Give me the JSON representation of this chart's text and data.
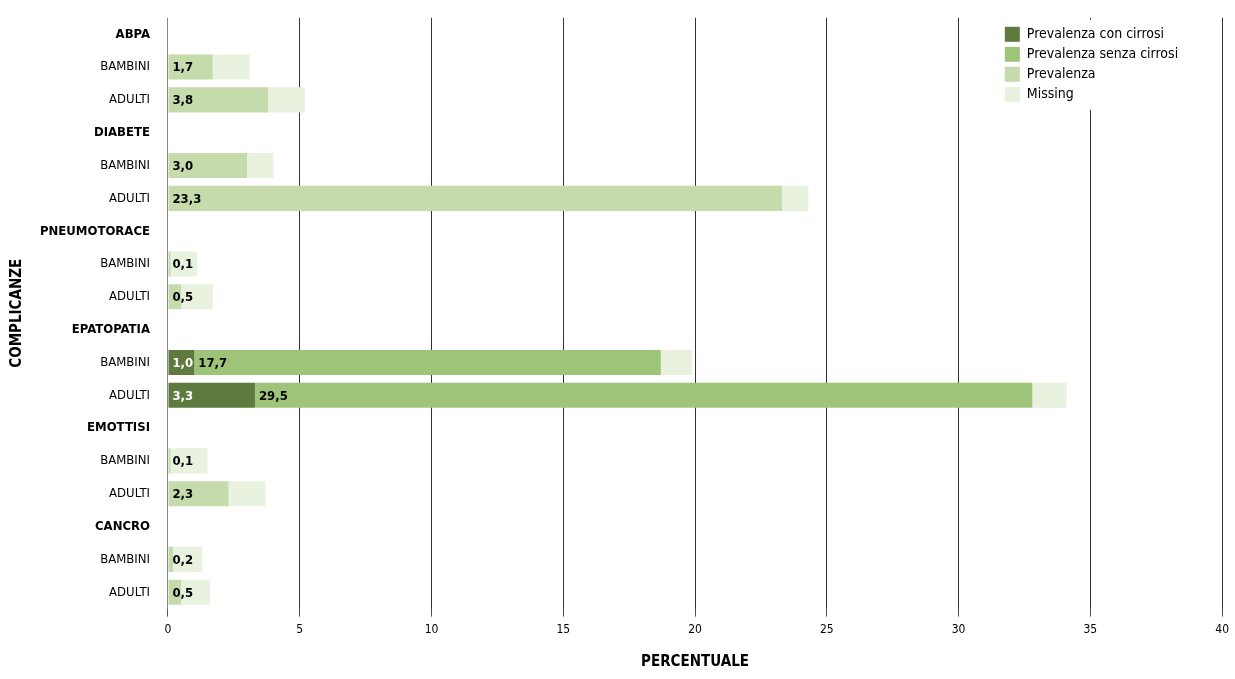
{
  "chart_data": {
    "type": "bar",
    "orientation": "horizontal",
    "stacked": true,
    "categories": [
      "ABPA",
      "BAMBINI",
      "ADULTI",
      "DIABETE",
      "BAMBINI",
      "ADULTI",
      "PNEUMOTORACE",
      "BAMBINI",
      "ADULTI",
      "EPATOPATIA",
      "BAMBINI",
      "ADULTI",
      "EMOTTISI",
      "BAMBINI",
      "ADULTI",
      "CANCRO",
      "BAMBINI",
      "ADULTI"
    ],
    "series": [
      {
        "name": "Prevalenza con cirrosi",
        "color": "#5f7a3e",
        "values": [
          null,
          null,
          null,
          null,
          null,
          null,
          null,
          null,
          null,
          null,
          1.0,
          3.3,
          null,
          null,
          null,
          null,
          null,
          null
        ],
        "value_labels": [
          null,
          null,
          null,
          null,
          null,
          null,
          null,
          null,
          null,
          null,
          "1,0",
          "3,3",
          null,
          null,
          null,
          null,
          null,
          null
        ]
      },
      {
        "name": "Prevalenza senza cirrosi",
        "color": "#9ec47a",
        "values": [
          null,
          null,
          null,
          null,
          null,
          null,
          null,
          null,
          null,
          null,
          17.7,
          29.5,
          null,
          null,
          null,
          null,
          null,
          null
        ],
        "value_labels": [
          null,
          null,
          null,
          null,
          null,
          null,
          null,
          null,
          null,
          null,
          "17,7",
          "29,5",
          null,
          null,
          null,
          null,
          null,
          null
        ]
      },
      {
        "name": "Prevalenza",
        "color": "#c5dbab",
        "values": [
          null,
          1.7,
          3.8,
          null,
          3.0,
          23.3,
          null,
          0.1,
          0.5,
          null,
          null,
          null,
          null,
          0.1,
          2.3,
          null,
          0.2,
          0.5
        ],
        "value_labels": [
          null,
          "1,7",
          "3,8",
          null,
          "3,0",
          "23,3",
          null,
          "0,1",
          "0,5",
          null,
          null,
          null,
          null,
          "0,1",
          "2,3",
          null,
          "0,2",
          "0,5"
        ]
      },
      {
        "name": "Missing",
        "color": "#e9f2df",
        "values": [
          null,
          1.4,
          1.4,
          null,
          1.0,
          1.0,
          null,
          1.0,
          1.2,
          null,
          1.2,
          1.3,
          null,
          1.4,
          1.4,
          null,
          1.1,
          1.1
        ]
      }
    ],
    "xlabel": "PERCENTUALE",
    "ylabel": "COMPLICANZE",
    "xlim": [
      0,
      40
    ],
    "xticks": [
      0,
      5,
      10,
      15,
      20,
      25,
      30,
      35,
      40
    ],
    "grid": "x",
    "legend": "top right"
  }
}
